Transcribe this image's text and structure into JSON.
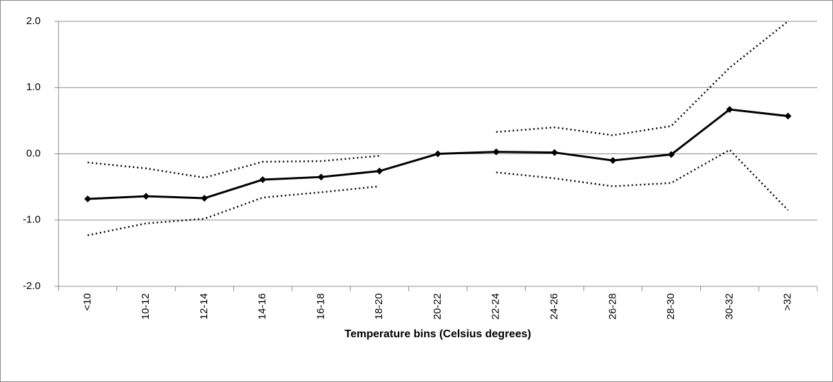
{
  "chart_data": {
    "type": "line",
    "x_label": "Temperature bins (Celsius degrees)",
    "categories": [
      "<10",
      "10-12",
      "12-14",
      "14-16",
      "16-18",
      "18-20",
      "20-22",
      "22-24",
      "24-26",
      "26-28",
      "28-30",
      "30-32",
      ">32"
    ],
    "series": [
      {
        "color": "#000000",
        "style": "solid",
        "markers": true,
        "values": [
          -0.68,
          -0.64,
          -0.67,
          -0.39,
          -0.35,
          -0.26,
          0.0,
          0.03,
          0.02,
          -0.1,
          -0.01,
          0.67,
          0.57
        ]
      },
      {
        "color": "#000000",
        "style": "dotted",
        "markers": false,
        "values": [
          -0.13,
          -0.22,
          -0.36,
          -0.12,
          -0.11,
          -0.03,
          null,
          0.33,
          0.4,
          0.28,
          0.42,
          1.3,
          2.0
        ]
      },
      {
        "color": "#000000",
        "style": "dotted",
        "markers": false,
        "values": [
          -1.23,
          -1.05,
          -0.98,
          -0.66,
          -0.58,
          -0.49,
          null,
          -0.28,
          -0.37,
          -0.49,
          -0.44,
          0.06,
          -0.85
        ]
      }
    ],
    "ylim": [
      -2,
      2
    ],
    "yticks": [
      {
        "value": -2,
        "label": "-2.0"
      },
      {
        "value": -1,
        "label": "-1.0"
      },
      {
        "value": 0,
        "label": "0.0"
      },
      {
        "value": 1,
        "label": "1.0"
      },
      {
        "value": 2,
        "label": "2.0"
      }
    ],
    "grid": true
  }
}
